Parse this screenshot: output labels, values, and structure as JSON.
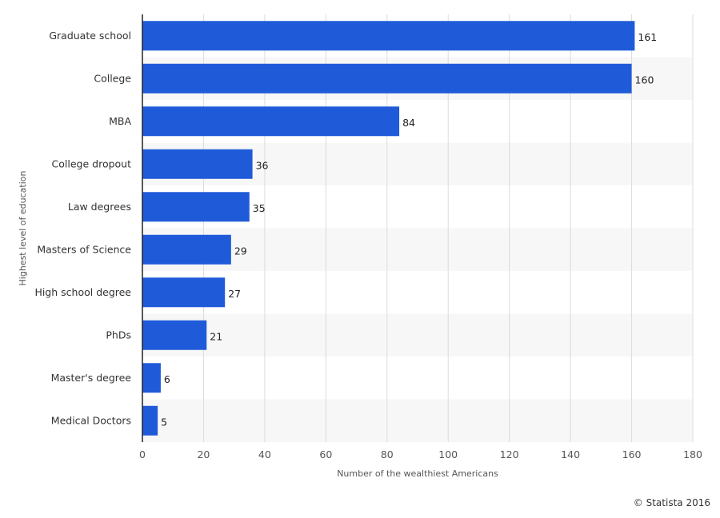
{
  "chart_data": {
    "type": "bar",
    "orientation": "horizontal",
    "title": "",
    "categories": [
      "Graduate school",
      "College",
      "MBA",
      "College dropout",
      "Law degrees",
      "Masters of Science",
      "High school degree",
      "PhDs",
      "Master's degree",
      "Medical Doctors"
    ],
    "values": [
      161,
      160,
      84,
      36,
      35,
      29,
      27,
      21,
      6,
      5
    ],
    "xlabel": "Number of the wealthiest Americans",
    "ylabel": "Highest level of education",
    "xlim": [
      0,
      180
    ],
    "xticks": [
      0,
      20,
      40,
      60,
      80,
      100,
      120,
      140,
      160,
      180
    ],
    "grid": true,
    "bar_color": "#1f5bd9",
    "band_color": "#f7f7f7"
  },
  "credit": "© Statista 2016"
}
